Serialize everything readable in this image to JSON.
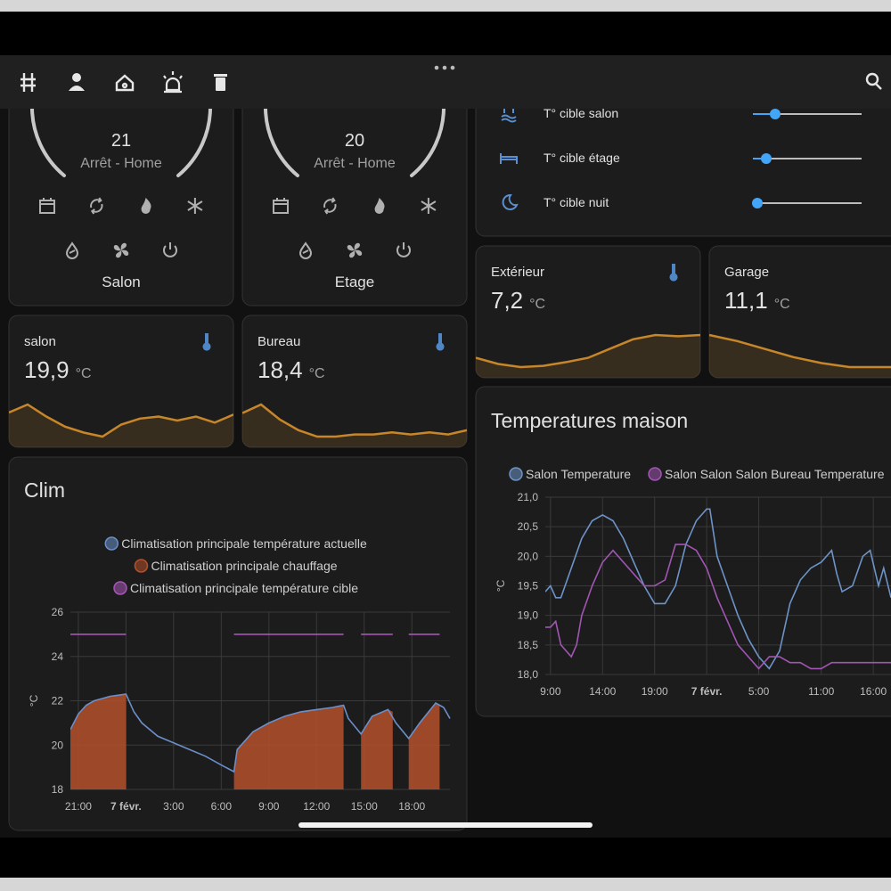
{
  "thermostats": [
    {
      "name": "Salon",
      "target": "21",
      "state": "Arrêt - Home"
    },
    {
      "name": "Etage",
      "target": "20",
      "state": "Arrêt - Home"
    }
  ],
  "targets": [
    "T° cible salon",
    "T° cible étage",
    "T° cible nuit"
  ],
  "sensors": [
    {
      "name": "Extérieur",
      "value": "7,2",
      "unit": "°C",
      "history": [
        3.5,
        2.5,
        2.0,
        2.2,
        2.8,
        3.5,
        5.0,
        6.5,
        7.2,
        7.0,
        7.2
      ]
    },
    {
      "name": "Garage",
      "value": "11,1",
      "unit": "°C",
      "history": [
        11.9,
        11.6,
        11.2,
        10.8,
        10.5,
        10.3,
        10.3,
        10.3,
        10.4
      ]
    },
    {
      "name": "salon",
      "value": "19,9",
      "unit": "°C",
      "history": [
        20.4,
        20.8,
        20.2,
        19.7,
        19.4,
        19.2,
        19.8,
        20.1,
        20.2,
        20.0,
        20.2,
        19.9,
        20.3
      ]
    },
    {
      "name": "Bureau",
      "value": "18,4",
      "unit": "°C",
      "history": [
        19.2,
        19.6,
        18.9,
        18.4,
        18.1,
        18.1,
        18.2,
        18.2,
        18.3,
        18.2,
        18.3,
        18.2,
        18.4
      ]
    }
  ],
  "chart_data": [
    {
      "type": "line",
      "title": "Clim",
      "y_label": "°C",
      "xlim": [
        20.5,
        44.4
      ],
      "xticks": [
        {
          "value": 21,
          "label": "21:00"
        },
        {
          "value": 24,
          "label": "7 févr."
        },
        {
          "value": 27,
          "label": "3:00"
        },
        {
          "value": 30,
          "label": "6:00"
        },
        {
          "value": 33,
          "label": "9:00"
        },
        {
          "value": 36,
          "label": "12:00"
        },
        {
          "value": 39,
          "label": "15:00"
        },
        {
          "value": 42,
          "label": "18:00"
        }
      ],
      "ylim": [
        18,
        26
      ],
      "yticks": [
        18,
        20,
        22,
        24,
        26
      ],
      "grid": true,
      "series": [
        {
          "name": "Climatisation principale température actuelle",
          "color": "#6b8fc9",
          "x": [
            20.5,
            21,
            21.5,
            22,
            23,
            24,
            24.5,
            25,
            26,
            27,
            28,
            29,
            30,
            30.8,
            31,
            32,
            33,
            34,
            35,
            36,
            37,
            37.7,
            38,
            38.8,
            39.5,
            40.5,
            41,
            41.8,
            42.5,
            43.5,
            44,
            44.4
          ],
          "values": [
            20.7,
            21.4,
            21.8,
            22.0,
            22.2,
            22.3,
            21.5,
            21.0,
            20.4,
            20.1,
            19.8,
            19.5,
            19.1,
            18.8,
            19.8,
            20.6,
            21.0,
            21.3,
            21.5,
            21.6,
            21.7,
            21.8,
            21.2,
            20.5,
            21.3,
            21.6,
            21.0,
            20.3,
            21.0,
            21.9,
            21.7,
            21.2
          ]
        },
        {
          "name": "Climatisation principale chauffage",
          "color": "#b4502a",
          "fill": true,
          "x": [
            20.5,
            21,
            21.5,
            22,
            23,
            24,
            24,
            30.8,
            31,
            32,
            33,
            34,
            35,
            36,
            37,
            37.7,
            37.7,
            38.8,
            39.5,
            40.5,
            40.8,
            40.8,
            41.8,
            42.5,
            43.5,
            43.75
          ],
          "values": [
            20.7,
            21.4,
            21.8,
            22.0,
            22.2,
            22.3,
            null,
            18.8,
            19.8,
            20.6,
            21.0,
            21.3,
            21.5,
            21.6,
            21.7,
            21.8,
            null,
            20.5,
            21.3,
            21.6,
            21.5,
            null,
            20.3,
            21.0,
            21.9,
            21.8
          ]
        },
        {
          "name": "Climatisation principale température cible",
          "color": "#a755b8",
          "x": [
            20.5,
            24,
            24,
            30.8,
            37.7,
            37.7,
            38.8,
            40.8,
            40.8,
            41.8,
            43.75
          ],
          "values": [
            25,
            25,
            null,
            25,
            25,
            null,
            25,
            25,
            null,
            25,
            25
          ]
        }
      ]
    },
    {
      "type": "line",
      "title": "Temperatures maison",
      "y_label": "°C",
      "xlim": [
        8.5,
        41.7
      ],
      "xticks": [
        {
          "value": 9,
          "label": "9:00"
        },
        {
          "value": 14,
          "label": "14:00"
        },
        {
          "value": 19,
          "label": "19:00"
        },
        {
          "value": 24,
          "label": "7 févr."
        },
        {
          "value": 29,
          "label": "5:00"
        },
        {
          "value": 35,
          "label": "11:00"
        },
        {
          "value": 40,
          "label": "16:00"
        }
      ],
      "ylim": [
        18,
        21
      ],
      "yticks": [
        {
          "value": 18,
          "label": "18,0"
        },
        {
          "value": 18.5,
          "label": "18,5"
        },
        {
          "value": 19,
          "label": "19,0"
        },
        {
          "value": 19.5,
          "label": "19,5"
        },
        {
          "value": 20,
          "label": "20,0"
        },
        {
          "value": 20.5,
          "label": "20,5"
        },
        {
          "value": 21,
          "label": "21,0"
        }
      ],
      "grid": true,
      "series": [
        {
          "name": "Salon Temperature",
          "color": "#6d93c7",
          "x": [
            8.5,
            9,
            9.5,
            10,
            11,
            12,
            13,
            14,
            15,
            16,
            17,
            18,
            19,
            20,
            21,
            22,
            23,
            24,
            24.3,
            25,
            26,
            27,
            28,
            29,
            30,
            31,
            32,
            33,
            34,
            35,
            36,
            36.5,
            37,
            38,
            39,
            39.7,
            40.5,
            41,
            41.7
          ],
          "values": [
            19.4,
            19.5,
            19.3,
            19.3,
            19.8,
            20.3,
            20.6,
            20.7,
            20.6,
            20.3,
            19.9,
            19.5,
            19.2,
            19.2,
            19.5,
            20.2,
            20.6,
            20.8,
            20.8,
            20.0,
            19.5,
            19.0,
            18.6,
            18.3,
            18.1,
            18.4,
            19.2,
            19.6,
            19.8,
            19.9,
            20.1,
            19.7,
            19.4,
            19.5,
            20.0,
            20.1,
            19.5,
            19.8,
            19.3
          ]
        },
        {
          "name": "Salon Salon Salon Bureau Temperature",
          "color": "#a156b3",
          "x": [
            8.5,
            9,
            9.5,
            10,
            11,
            11.5,
            12,
            13,
            14,
            15,
            16,
            17,
            18,
            19,
            20,
            21,
            22,
            23,
            24,
            25,
            26,
            27,
            28,
            29,
            30,
            31,
            32,
            33,
            34,
            35,
            36,
            37,
            38,
            39,
            40,
            41.7
          ],
          "values": [
            18.8,
            18.8,
            18.9,
            18.5,
            18.3,
            18.5,
            19.0,
            19.5,
            19.9,
            20.1,
            19.9,
            19.7,
            19.5,
            19.5,
            19.6,
            20.2,
            20.2,
            20.1,
            19.8,
            19.3,
            18.9,
            18.5,
            18.3,
            18.1,
            18.3,
            18.3,
            18.2,
            18.2,
            18.1,
            18.1,
            18.2,
            18.2,
            18.2,
            18.2,
            18.2,
            18.2
          ]
        }
      ]
    }
  ]
}
